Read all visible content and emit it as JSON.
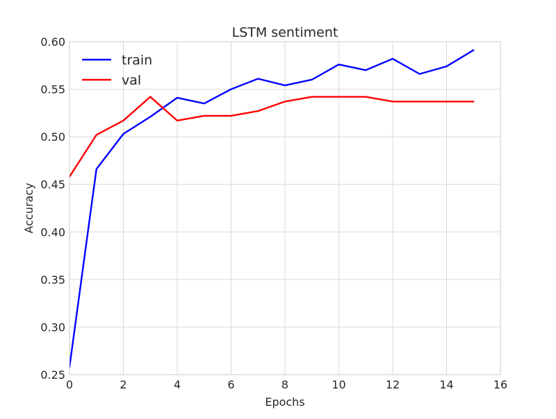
{
  "chart_data": {
    "type": "line",
    "title": "LSTM sentiment",
    "xlabel": "Epochs",
    "ylabel": "Accuracy",
    "xlim": [
      0,
      16
    ],
    "ylim": [
      0.25,
      0.6
    ],
    "x_ticks": [
      "0",
      "2",
      "4",
      "6",
      "8",
      "10",
      "12",
      "14",
      "16"
    ],
    "y_ticks": [
      "0.25",
      "0.30",
      "0.35",
      "0.40",
      "0.45",
      "0.50",
      "0.55",
      "0.60"
    ],
    "grid": true,
    "legend_position": "top-left",
    "series": [
      {
        "name": "train",
        "color": "#0000ff",
        "x": [
          0,
          1,
          2,
          3,
          4,
          5,
          6,
          7,
          8,
          9,
          10,
          11,
          12,
          13,
          14,
          15
        ],
        "values": [
          0.258,
          0.466,
          0.503,
          0.521,
          0.541,
          0.535,
          0.55,
          0.561,
          0.554,
          0.56,
          0.576,
          0.57,
          0.582,
          0.566,
          0.574,
          0.591
        ]
      },
      {
        "name": "val",
        "color": "#ff0000",
        "x": [
          0,
          1,
          2,
          3,
          4,
          5,
          6,
          7,
          8,
          9,
          10,
          11,
          12,
          13,
          14,
          15
        ],
        "values": [
          0.458,
          0.502,
          0.517,
          0.542,
          0.517,
          0.522,
          0.522,
          0.527,
          0.537,
          0.542,
          0.542,
          0.542,
          0.537,
          0.537,
          0.537,
          0.537
        ]
      }
    ]
  }
}
